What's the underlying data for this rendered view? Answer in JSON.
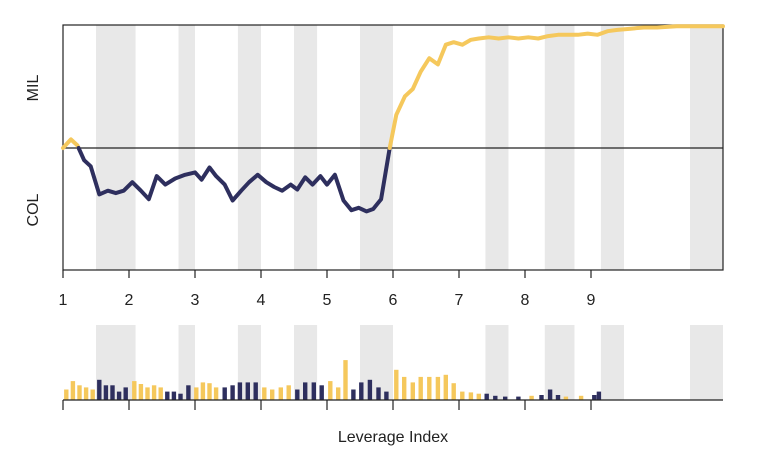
{
  "chart_data": [
    {
      "type": "line",
      "panel": "main",
      "ylabel_top": "MIL",
      "ylabel_bottom": "COL",
      "ylim": [
        -1,
        1
      ],
      "reference_line_y": 0,
      "xlim": [
        1,
        11
      ],
      "x_ticks": [
        1,
        2,
        3,
        4,
        5,
        6,
        7,
        8,
        9
      ],
      "x_tick_labels": [
        "1",
        "2",
        "3",
        "4",
        "5",
        "6",
        "7",
        "8",
        "9"
      ],
      "shaded_bands": [
        [
          1.5,
          2.1
        ],
        [
          2.75,
          3.0
        ],
        [
          3.65,
          4.0
        ],
        [
          4.5,
          4.85
        ],
        [
          5.5,
          6.0
        ],
        [
          7.4,
          7.75
        ],
        [
          8.3,
          8.75
        ],
        [
          9.15,
          9.5
        ],
        [
          10.5,
          11.0
        ]
      ],
      "colors": {
        "positive": "#F5C85C",
        "negative": "#2E2F5E",
        "band": "#E8E8E8"
      },
      "series": [
        {
          "points": [
            [
              1.0,
              0.0
            ],
            [
              1.12,
              0.07
            ],
            [
              1.22,
              0.02
            ],
            [
              1.32,
              -0.1
            ],
            [
              1.42,
              -0.15
            ],
            [
              1.55,
              -0.38
            ],
            [
              1.68,
              -0.35
            ],
            [
              1.8,
              -0.37
            ],
            [
              1.92,
              -0.35
            ],
            [
              2.05,
              -0.28
            ],
            [
              2.18,
              -0.35
            ],
            [
              2.3,
              -0.42
            ],
            [
              2.42,
              -0.23
            ],
            [
              2.55,
              -0.3
            ],
            [
              2.7,
              -0.25
            ],
            [
              2.85,
              -0.22
            ],
            [
              3.0,
              -0.2
            ],
            [
              3.1,
              -0.26
            ],
            [
              3.22,
              -0.16
            ],
            [
              3.32,
              -0.23
            ],
            [
              3.45,
              -0.3
            ],
            [
              3.57,
              -0.43
            ],
            [
              3.7,
              -0.35
            ],
            [
              3.82,
              -0.28
            ],
            [
              3.95,
              -0.22
            ],
            [
              4.08,
              -0.28
            ],
            [
              4.2,
              -0.32
            ],
            [
              4.32,
              -0.35
            ],
            [
              4.45,
              -0.3
            ],
            [
              4.55,
              -0.34
            ],
            [
              4.67,
              -0.24
            ],
            [
              4.78,
              -0.3
            ],
            [
              4.9,
              -0.23
            ],
            [
              5.0,
              -0.3
            ],
            [
              5.12,
              -0.22
            ],
            [
              5.25,
              -0.43
            ],
            [
              5.37,
              -0.51
            ],
            [
              5.48,
              -0.49
            ],
            [
              5.6,
              -0.52
            ],
            [
              5.7,
              -0.5
            ],
            [
              5.82,
              -0.42
            ],
            [
              5.95,
              0.0
            ],
            [
              6.05,
              0.27
            ],
            [
              6.18,
              0.42
            ],
            [
              6.3,
              0.48
            ],
            [
              6.42,
              0.62
            ],
            [
              6.55,
              0.73
            ],
            [
              6.68,
              0.68
            ],
            [
              6.8,
              0.84
            ],
            [
              6.92,
              0.86
            ],
            [
              7.05,
              0.84
            ],
            [
              7.18,
              0.88
            ],
            [
              7.3,
              0.89
            ],
            [
              7.45,
              0.9
            ],
            [
              7.6,
              0.89
            ],
            [
              7.75,
              0.9
            ],
            [
              7.9,
              0.89
            ],
            [
              8.05,
              0.9
            ],
            [
              8.2,
              0.89
            ],
            [
              8.35,
              0.91
            ],
            [
              8.5,
              0.92
            ],
            [
              8.65,
              0.92
            ],
            [
              8.8,
              0.92
            ],
            [
              8.95,
              0.93
            ],
            [
              9.1,
              0.92
            ],
            [
              9.25,
              0.95
            ],
            [
              9.4,
              0.96
            ],
            [
              9.6,
              0.97
            ],
            [
              9.8,
              0.98
            ],
            [
              10.0,
              0.98
            ],
            [
              10.3,
              0.99
            ],
            [
              10.6,
              0.99
            ],
            [
              11.0,
              0.99
            ]
          ]
        }
      ]
    },
    {
      "type": "bar",
      "panel": "lower",
      "xlabel": "Leverage Index",
      "xlim": [
        1,
        11
      ],
      "x_ticks": [
        1,
        2,
        3,
        4,
        5,
        6,
        7,
        8,
        9
      ],
      "ylim": [
        0,
        1
      ],
      "shaded_bands": [
        [
          1.5,
          2.1
        ],
        [
          2.75,
          3.0
        ],
        [
          3.65,
          4.0
        ],
        [
          4.5,
          4.85
        ],
        [
          5.5,
          6.0
        ],
        [
          7.4,
          7.75
        ],
        [
          8.3,
          8.75
        ],
        [
          9.15,
          9.5
        ],
        [
          10.5,
          11.0
        ]
      ],
      "bars": [
        [
          1.05,
          0.25,
          "pos"
        ],
        [
          1.15,
          0.45,
          "pos"
        ],
        [
          1.25,
          0.35,
          "pos"
        ],
        [
          1.35,
          0.3,
          "pos"
        ],
        [
          1.45,
          0.25,
          "pos"
        ],
        [
          1.55,
          0.48,
          "neg"
        ],
        [
          1.65,
          0.35,
          "neg"
        ],
        [
          1.75,
          0.35,
          "neg"
        ],
        [
          1.85,
          0.2,
          "neg"
        ],
        [
          1.95,
          0.3,
          "neg"
        ],
        [
          2.08,
          0.45,
          "pos"
        ],
        [
          2.18,
          0.38,
          "pos"
        ],
        [
          2.28,
          0.3,
          "pos"
        ],
        [
          2.38,
          0.35,
          "pos"
        ],
        [
          2.48,
          0.3,
          "pos"
        ],
        [
          2.58,
          0.2,
          "neg"
        ],
        [
          2.68,
          0.2,
          "neg"
        ],
        [
          2.78,
          0.15,
          "neg"
        ],
        [
          2.9,
          0.35,
          "neg"
        ],
        [
          3.02,
          0.3,
          "pos"
        ],
        [
          3.12,
          0.42,
          "pos"
        ],
        [
          3.22,
          0.4,
          "pos"
        ],
        [
          3.32,
          0.3,
          "pos"
        ],
        [
          3.45,
          0.3,
          "neg"
        ],
        [
          3.57,
          0.35,
          "neg"
        ],
        [
          3.68,
          0.42,
          "neg"
        ],
        [
          3.8,
          0.42,
          "neg"
        ],
        [
          3.92,
          0.42,
          "neg"
        ],
        [
          4.05,
          0.3,
          "pos"
        ],
        [
          4.17,
          0.25,
          "pos"
        ],
        [
          4.3,
          0.3,
          "pos"
        ],
        [
          4.42,
          0.35,
          "pos"
        ],
        [
          4.55,
          0.25,
          "neg"
        ],
        [
          4.67,
          0.42,
          "neg"
        ],
        [
          4.8,
          0.42,
          "neg"
        ],
        [
          4.92,
          0.35,
          "neg"
        ],
        [
          5.05,
          0.45,
          "pos"
        ],
        [
          5.17,
          0.3,
          "pos"
        ],
        [
          5.28,
          0.95,
          "pos"
        ],
        [
          5.4,
          0.25,
          "neg"
        ],
        [
          5.52,
          0.42,
          "neg"
        ],
        [
          5.65,
          0.48,
          "neg"
        ],
        [
          5.78,
          0.3,
          "neg"
        ],
        [
          5.9,
          0.2,
          "neg"
        ],
        [
          6.05,
          0.72,
          "pos"
        ],
        [
          6.17,
          0.55,
          "pos"
        ],
        [
          6.3,
          0.42,
          "pos"
        ],
        [
          6.42,
          0.55,
          "pos"
        ],
        [
          6.55,
          0.55,
          "pos"
        ],
        [
          6.68,
          0.55,
          "pos"
        ],
        [
          6.8,
          0.6,
          "pos"
        ],
        [
          6.92,
          0.4,
          "pos"
        ],
        [
          7.05,
          0.2,
          "pos"
        ],
        [
          7.18,
          0.18,
          "pos"
        ],
        [
          7.3,
          0.15,
          "pos"
        ],
        [
          7.42,
          0.15,
          "neg"
        ],
        [
          7.55,
          0.1,
          "neg"
        ],
        [
          7.7,
          0.08,
          "neg"
        ],
        [
          7.9,
          0.08,
          "neg"
        ],
        [
          8.1,
          0.1,
          "pos"
        ],
        [
          8.25,
          0.12,
          "neg"
        ],
        [
          8.38,
          0.25,
          "neg"
        ],
        [
          8.5,
          0.12,
          "neg"
        ],
        [
          8.62,
          0.08,
          "pos"
        ],
        [
          8.85,
          0.1,
          "pos"
        ],
        [
          9.05,
          0.12,
          "neg"
        ],
        [
          9.12,
          0.2,
          "neg"
        ]
      ]
    }
  ]
}
